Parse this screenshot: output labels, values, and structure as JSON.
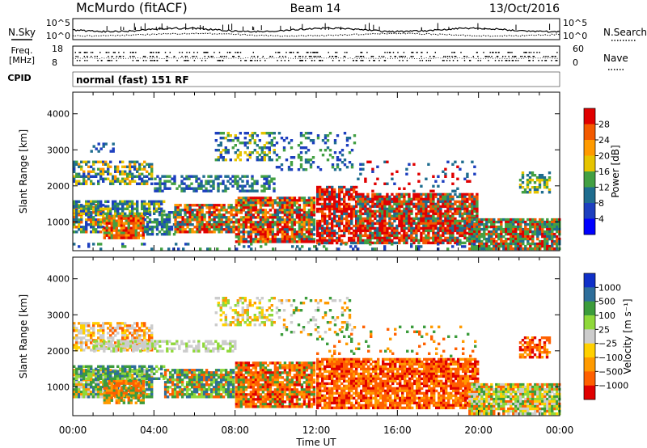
{
  "header": {
    "station": "McMurdo (fitACF)",
    "beam": "Beam 14",
    "date": "13/Oct/2016"
  },
  "noise_panel": {
    "left_label": "N.Sky",
    "right_label": "N.Search",
    "left_ticks": [
      "10^5",
      "10^0"
    ],
    "right_ticks": [
      "10^5",
      "10^0"
    ]
  },
  "freq_panel": {
    "left_label_top": "Freq.",
    "left_label_bottom": "[MHz]",
    "left_ticks": [
      "18",
      "8"
    ],
    "right_label": "Nave",
    "right_ticks": [
      "60",
      "0"
    ]
  },
  "cpid": {
    "label": "CPID",
    "text": "normal (fast) 151 RF"
  },
  "chart_data": [
    {
      "type": "heatmap",
      "name": "Power",
      "ylabel": "Slant Range [km]",
      "yticks": [
        1000,
        2000,
        3000,
        4000
      ],
      "ylim": [
        200,
        4600
      ],
      "xlim": [
        0,
        24
      ],
      "colorbar": {
        "label": "Power [dB]",
        "ticks": [
          "28",
          "24",
          "20",
          "16",
          "12",
          "8",
          "4"
        ],
        "colors": [
          "#e00000",
          "#f35a00",
          "#ff9a00",
          "#e6c400",
          "#43a043",
          "#1f6d8f",
          "#1d3fbf",
          "#0000ff"
        ]
      }
    },
    {
      "type": "heatmap",
      "name": "Velocity",
      "ylabel": "Slant Range [km]",
      "yticks": [
        1000,
        2000,
        3000,
        4000
      ],
      "ylim": [
        200,
        4600
      ],
      "xlim": [
        0,
        24
      ],
      "colorbar": {
        "label": "Velocity [m s⁻¹]",
        "ticks": [
          "1000",
          "500",
          "100",
          "25",
          "−25",
          "−100",
          "−500",
          "−1000"
        ],
        "colors": [
          "#1030c8",
          "#2e6e9a",
          "#3c9c3c",
          "#8fd83a",
          "#cccccc",
          "#ffd000",
          "#ff9a00",
          "#ff6000",
          "#e00000"
        ]
      }
    }
  ],
  "xaxis": {
    "label": "Time UT",
    "ticks": [
      "00:00",
      "04:00",
      "08:00",
      "12:00",
      "16:00",
      "20:00",
      "00:00"
    ]
  }
}
